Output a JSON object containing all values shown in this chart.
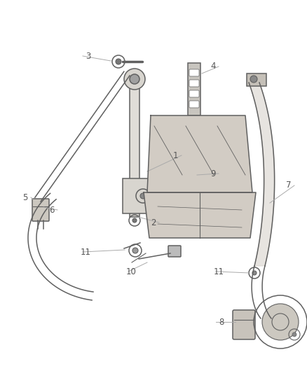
{
  "background_color": "#ffffff",
  "line_color": "#606060",
  "label_color": "#555555",
  "fig_width": 4.38,
  "fig_height": 5.33,
  "dpi": 100
}
